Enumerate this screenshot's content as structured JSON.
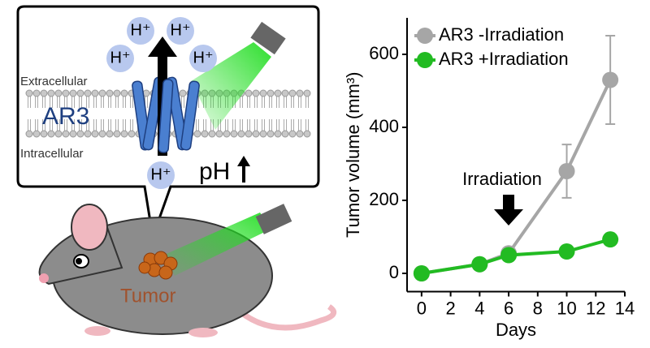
{
  "illustration": {
    "protons": [
      "H⁺",
      "H⁺",
      "H⁺",
      "H⁺",
      "H⁺"
    ],
    "extracellular": "Extracellular",
    "intracellular": "Intracellular",
    "channel": "AR3",
    "ph": "pH",
    "tumor": "Tumor"
  },
  "chart_data": {
    "type": "line",
    "y_label": "Tumor volume (mm³)",
    "x_label": "Days",
    "annotation": "Irradiation",
    "x": [
      0,
      4,
      6,
      10,
      13
    ],
    "series": [
      {
        "name": "AR3 -Irradiation",
        "color": "#a6a6a6",
        "values": [
          0,
          25,
          55,
          280,
          530
        ],
        "errors": [
          5,
          8,
          10,
          73,
          121
        ]
      },
      {
        "name": "AR3 +Irradiation",
        "color": "#22bb22",
        "values": [
          0,
          25,
          50,
          60,
          93
        ]
      }
    ],
    "xlim": [
      -1,
      14
    ],
    "ylim": [
      -50,
      700
    ],
    "xticks": [
      0,
      2,
      4,
      6,
      8,
      10,
      12,
      14
    ],
    "yticks": [
      0,
      200,
      400,
      600
    ],
    "legend": "upper left"
  }
}
